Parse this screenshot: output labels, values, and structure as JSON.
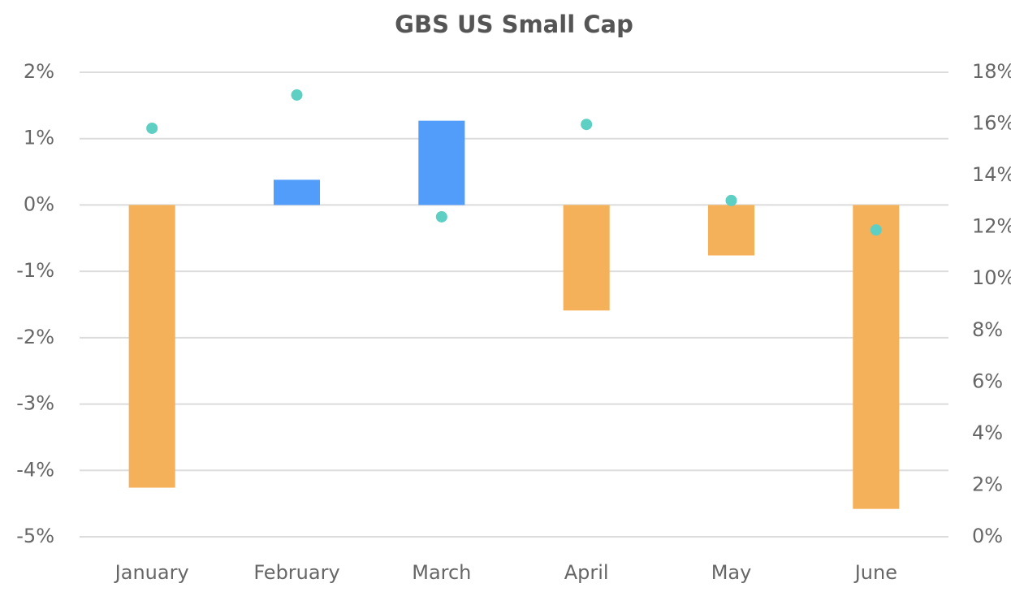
{
  "chart_data": {
    "type": "bar_scatter",
    "title": "GBS US Small Cap",
    "categories": [
      "January",
      "February",
      "March",
      "April",
      "May",
      "June"
    ],
    "series": [
      {
        "type": "bar",
        "axis": "y",
        "values": [
          -4.26,
          0.38,
          1.27,
          -1.59,
          -0.76,
          -4.58
        ],
        "colors": [
          "#f5b159",
          "#529dfa",
          "#529dfa",
          "#f5b159",
          "#f5b159",
          "#f5b159"
        ]
      },
      {
        "type": "scatter",
        "axis": "y2",
        "color": "#5ecfc3",
        "values": [
          15.83,
          17.12,
          12.4,
          15.98,
          13.03,
          11.89
        ]
      }
    ],
    "ylim": [
      -5,
      2
    ],
    "yticks": [
      {
        "value": -5,
        "label": "-5%"
      },
      {
        "value": -4,
        "label": "-4%"
      },
      {
        "value": -3,
        "label": "-3%"
      },
      {
        "value": -2,
        "label": "-2%"
      },
      {
        "value": -1,
        "label": "-1%"
      },
      {
        "value": 0,
        "label": "0%"
      },
      {
        "value": 1,
        "label": "1%"
      },
      {
        "value": 2,
        "label": "2%"
      }
    ],
    "y2lim": [
      0,
      18
    ],
    "y2ticks": [
      {
        "value": 0,
        "label": "0%"
      },
      {
        "value": 2,
        "label": "2%"
      },
      {
        "value": 4,
        "label": "4%"
      },
      {
        "value": 6,
        "label": "6%"
      },
      {
        "value": 8,
        "label": "8%"
      },
      {
        "value": 10,
        "label": "10%"
      },
      {
        "value": 12,
        "label": "12%"
      },
      {
        "value": 14,
        "label": "14%"
      },
      {
        "value": 16,
        "label": "16%"
      },
      {
        "value": 18,
        "label": "18%"
      }
    ],
    "grid": true
  }
}
